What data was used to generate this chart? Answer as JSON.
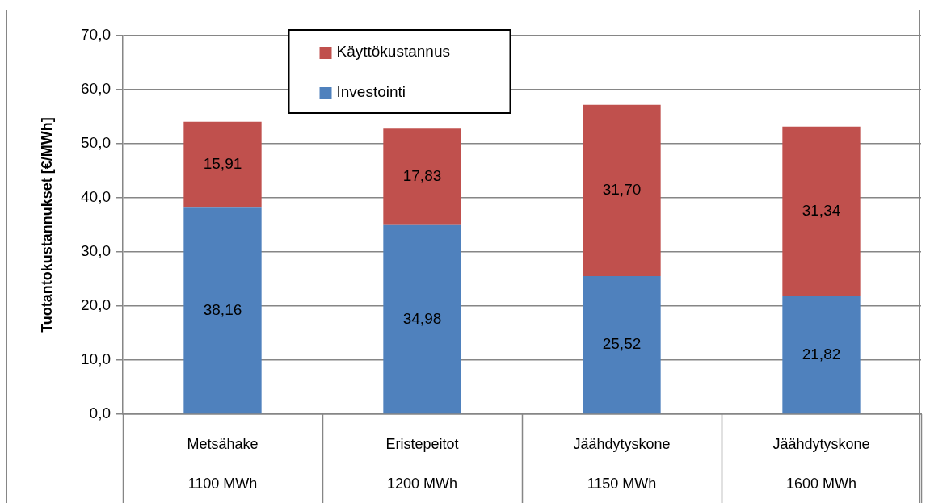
{
  "chart_data": {
    "type": "bar",
    "ylabel": "Tuotantokustannukset [€/MWh]",
    "categories": [
      "Metsähake\n1100 MWh",
      "Eristepeitot\n1200 MWh",
      "Jäähdytyskone\n1150 MWh",
      "Jäähdytyskone\n1600 MWh"
    ],
    "series": [
      {
        "name": "Investointi",
        "color": "#4f81bd",
        "values": [
          38.16,
          34.98,
          25.52,
          21.82
        ],
        "value_labels": [
          "38,16",
          "34,98",
          "25,52",
          "21,82"
        ]
      },
      {
        "name": "Käyttökustannus",
        "color": "#c0504d",
        "values": [
          15.91,
          17.83,
          31.7,
          31.34
        ],
        "value_labels": [
          "15,91",
          "17,83",
          "31,70",
          "31,34"
        ]
      }
    ],
    "stacked": true,
    "ylim": [
      0,
      70
    ],
    "yticks": [
      {
        "value": 0,
        "label": "0,0"
      },
      {
        "value": 10,
        "label": "10,0"
      },
      {
        "value": 20,
        "label": "20,0"
      },
      {
        "value": 30,
        "label": "30,0"
      },
      {
        "value": 40,
        "label": "40,0"
      },
      {
        "value": 50,
        "label": "50,0"
      },
      {
        "value": 60,
        "label": "60,0"
      },
      {
        "value": 70,
        "label": "70,0"
      }
    ],
    "grid": "y",
    "legend": "top left"
  }
}
